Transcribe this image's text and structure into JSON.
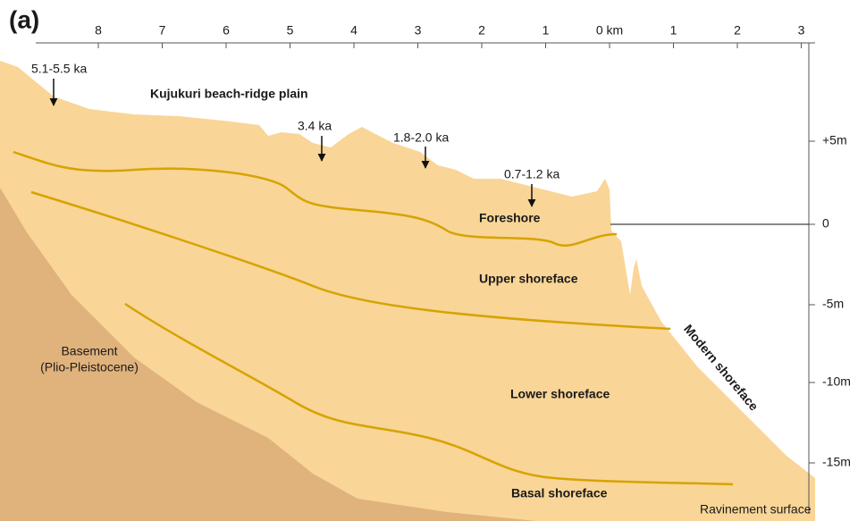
{
  "panel_label": "(a)",
  "top_axis": [
    "8",
    "7",
    "6",
    "5",
    "4",
    "3",
    "2",
    "1",
    "0 km",
    "1",
    "2",
    "3"
  ],
  "right_axis": [
    "+5m",
    "0",
    "-5m",
    "-10m",
    "-15m"
  ],
  "labels": {
    "age_1": "5.1-5.5 ka",
    "plain": "Kujukuri beach-ridge plain",
    "age_2": "3.4 ka",
    "age_3": "1.8-2.0 ka",
    "age_4": "0.7-1.2 ka",
    "foreshore": "Foreshore",
    "upper": "Upper shoreface",
    "basement": "Basement",
    "basement_age": "(Plio-Pleistocene)",
    "lower": "Lower shoreface",
    "basal": "Basal shoreface",
    "ravinement": "Ravinement surface",
    "modern": "Modern shoreface"
  }
}
